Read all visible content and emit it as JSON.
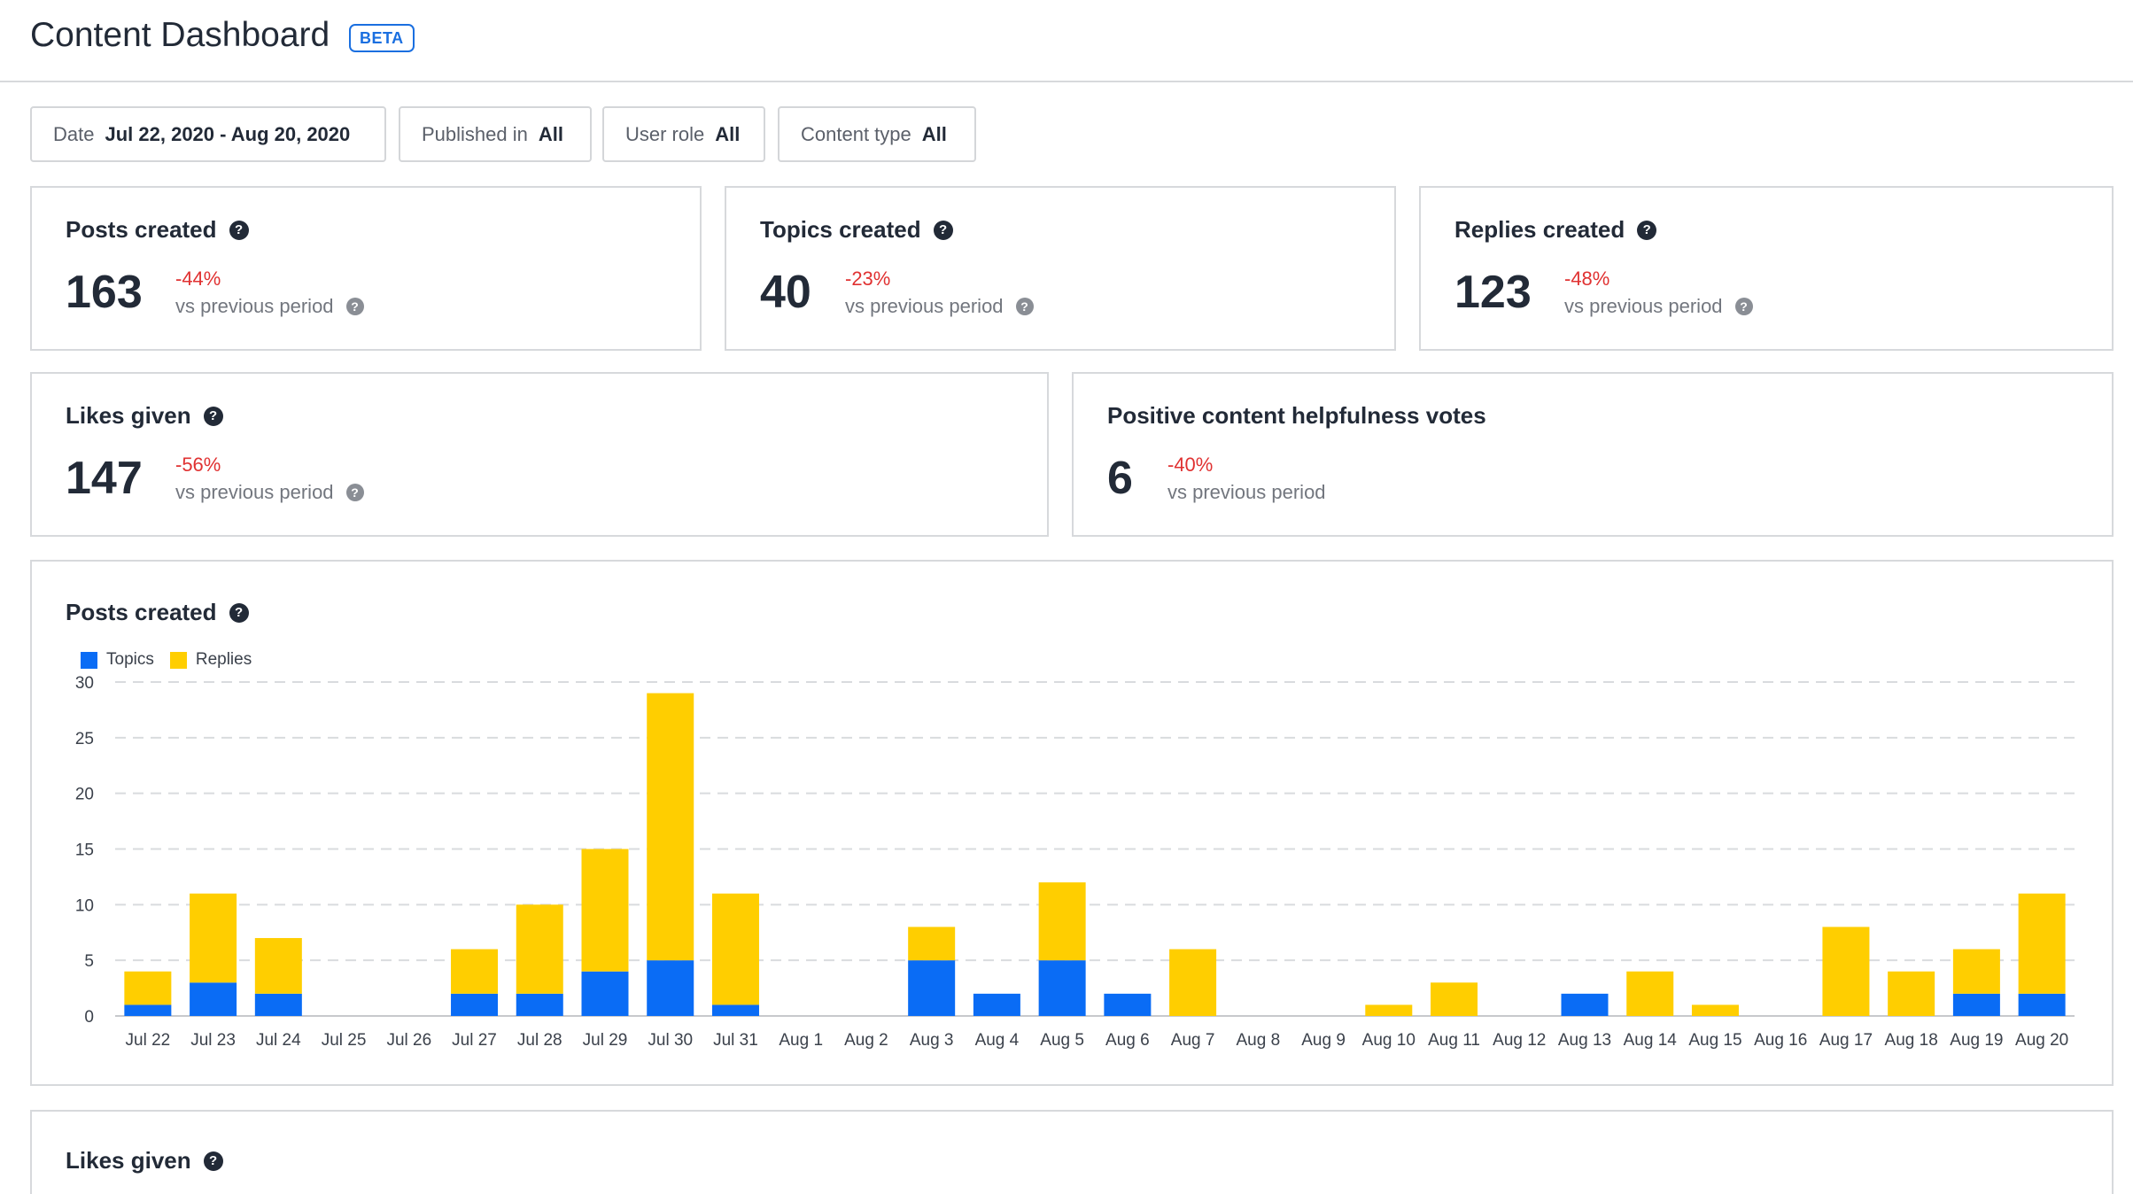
{
  "header": {
    "title": "Content Dashboard",
    "badge": "BETA"
  },
  "filters": [
    {
      "label": "Date",
      "value": "Jul 22, 2020 - Aug 20, 2020"
    },
    {
      "label": "Published in",
      "value": "All"
    },
    {
      "label": "User role",
      "value": "All"
    },
    {
      "label": "Content type",
      "value": "All"
    }
  ],
  "stats": {
    "posts": {
      "title": "Posts created",
      "value": "163",
      "delta": "-44%",
      "vs": "vs previous period"
    },
    "topics": {
      "title": "Topics created",
      "value": "40",
      "delta": "-23%",
      "vs": "vs previous period"
    },
    "replies": {
      "title": "Replies created",
      "value": "123",
      "delta": "-48%",
      "vs": "vs previous period"
    },
    "likes": {
      "title": "Likes given",
      "value": "147",
      "delta": "-56%",
      "vs": "vs previous period"
    },
    "helpful": {
      "title": "Positive content helpfulness votes",
      "value": "6",
      "delta": "-40%",
      "vs": "vs previous period"
    }
  },
  "chart_card": {
    "title": "Posts created"
  },
  "likes_card": {
    "title": "Likes given"
  },
  "icons": {
    "help": "question-circle-icon"
  },
  "colors": {
    "topics": "#0a6cf5",
    "replies": "#ffce00",
    "negative": "#e03131",
    "grid": "#d9dbde"
  },
  "chart_data": {
    "type": "bar",
    "stacked": true,
    "categories": [
      "Jul 22",
      "Jul 23",
      "Jul 24",
      "Jul 25",
      "Jul 26",
      "Jul 27",
      "Jul 28",
      "Jul 29",
      "Jul 30",
      "Jul 31",
      "Aug 1",
      "Aug 2",
      "Aug 3",
      "Aug 4",
      "Aug 5",
      "Aug 6",
      "Aug 7",
      "Aug 8",
      "Aug 9",
      "Aug 10",
      "Aug 11",
      "Aug 12",
      "Aug 13",
      "Aug 14",
      "Aug 15",
      "Aug 16",
      "Aug 17",
      "Aug 18",
      "Aug 19",
      "Aug 20"
    ],
    "series": [
      {
        "name": "Topics",
        "values": [
          1,
          3,
          2,
          0,
          0,
          2,
          2,
          4,
          5,
          1,
          0,
          0,
          5,
          2,
          5,
          2,
          0,
          0,
          0,
          0,
          0,
          0,
          2,
          0,
          0,
          0,
          0,
          0,
          2,
          2
        ]
      },
      {
        "name": "Replies",
        "values": [
          3,
          8,
          5,
          0,
          0,
          4,
          8,
          11,
          24,
          10,
          0,
          0,
          3,
          0,
          7,
          0,
          6,
          0,
          0,
          1,
          3,
          0,
          0,
          4,
          1,
          0,
          8,
          4,
          4,
          9
        ]
      }
    ],
    "yticks": [
      0,
      5,
      10,
      15,
      20,
      25,
      30
    ],
    "ylim": [
      0,
      30
    ],
    "grid": true,
    "legend": "top-left"
  }
}
